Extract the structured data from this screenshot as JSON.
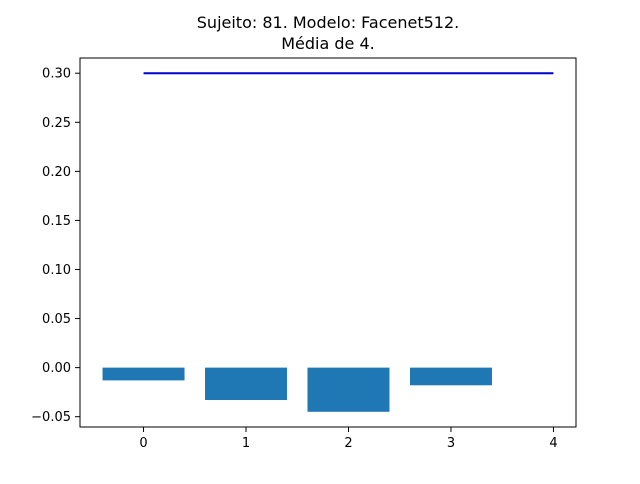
{
  "chart_data": {
    "type": "bar",
    "title": "Sujeito: 81. Modelo: Facenet512.",
    "subtitle": "Média de 4.",
    "xlabel": "",
    "ylabel": "",
    "categories": [
      0,
      1,
      2,
      3
    ],
    "series": [
      {
        "values": [
          -0.013,
          -0.033,
          -0.045,
          -0.018
        ],
        "color": "#1f77b4"
      }
    ],
    "reference_line": {
      "x": [
        0,
        4
      ],
      "y": [
        0.3,
        0.3
      ],
      "color": "#0000cc"
    },
    "xlim": [
      -0.62,
      4.22
    ],
    "ylim": [
      -0.0605,
      0.3155
    ],
    "x_ticks": [
      "0",
      "1",
      "2",
      "3",
      "4"
    ],
    "y_ticks": [
      "−0.05",
      "0.00",
      "0.05",
      "0.10",
      "0.15",
      "0.20",
      "0.25",
      "0.30"
    ],
    "grid": false,
    "legend": "none"
  }
}
